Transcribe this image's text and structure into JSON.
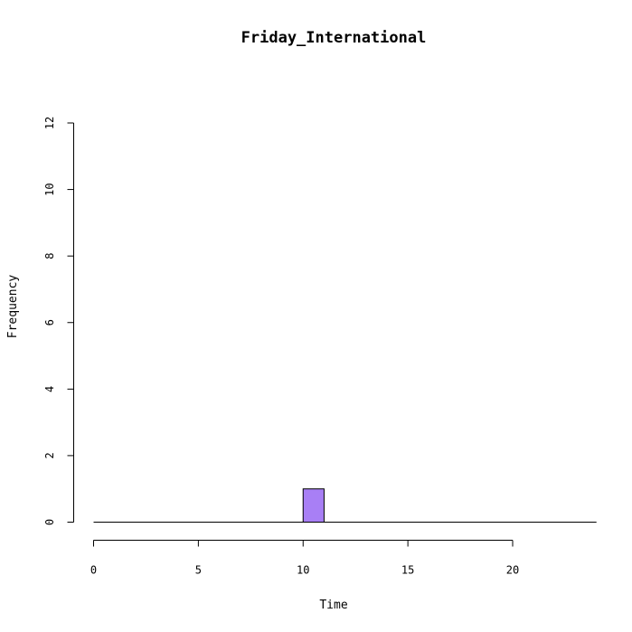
{
  "chart_data": {
    "type": "bar",
    "title": "Friday_International",
    "xlabel": "Time",
    "ylabel": "Frequency",
    "x_ticks": [
      0,
      5,
      10,
      15,
      20
    ],
    "y_ticks": [
      0,
      2,
      4,
      6,
      8,
      10,
      12
    ],
    "xlim": [
      0,
      24
    ],
    "ylim": [
      0,
      12
    ],
    "bin_width": 1,
    "bins": [
      {
        "x0": 0,
        "x1": 1,
        "count": 0
      },
      {
        "x0": 1,
        "x1": 2,
        "count": 0
      },
      {
        "x0": 2,
        "x1": 3,
        "count": 0
      },
      {
        "x0": 3,
        "x1": 4,
        "count": 0
      },
      {
        "x0": 4,
        "x1": 5,
        "count": 0
      },
      {
        "x0": 5,
        "x1": 6,
        "count": 0
      },
      {
        "x0": 6,
        "x1": 7,
        "count": 0
      },
      {
        "x0": 7,
        "x1": 8,
        "count": 0
      },
      {
        "x0": 8,
        "x1": 9,
        "count": 0
      },
      {
        "x0": 9,
        "x1": 10,
        "count": 0
      },
      {
        "x0": 10,
        "x1": 11,
        "count": 1
      },
      {
        "x0": 11,
        "x1": 12,
        "count": 0
      },
      {
        "x0": 12,
        "x1": 13,
        "count": 0
      },
      {
        "x0": 13,
        "x1": 14,
        "count": 0
      },
      {
        "x0": 14,
        "x1": 15,
        "count": 0
      },
      {
        "x0": 15,
        "x1": 16,
        "count": 0
      },
      {
        "x0": 16,
        "x1": 17,
        "count": 0
      },
      {
        "x0": 17,
        "x1": 18,
        "count": 0
      },
      {
        "x0": 18,
        "x1": 19,
        "count": 0
      },
      {
        "x0": 19,
        "x1": 20,
        "count": 0
      },
      {
        "x0": 20,
        "x1": 21,
        "count": 0
      },
      {
        "x0": 21,
        "x1": 22,
        "count": 0
      },
      {
        "x0": 22,
        "x1": 23,
        "count": 0
      },
      {
        "x0": 23,
        "x1": 24,
        "count": 0
      }
    ],
    "bar_color": "#a87ff5",
    "grid": false,
    "legend": "none"
  }
}
